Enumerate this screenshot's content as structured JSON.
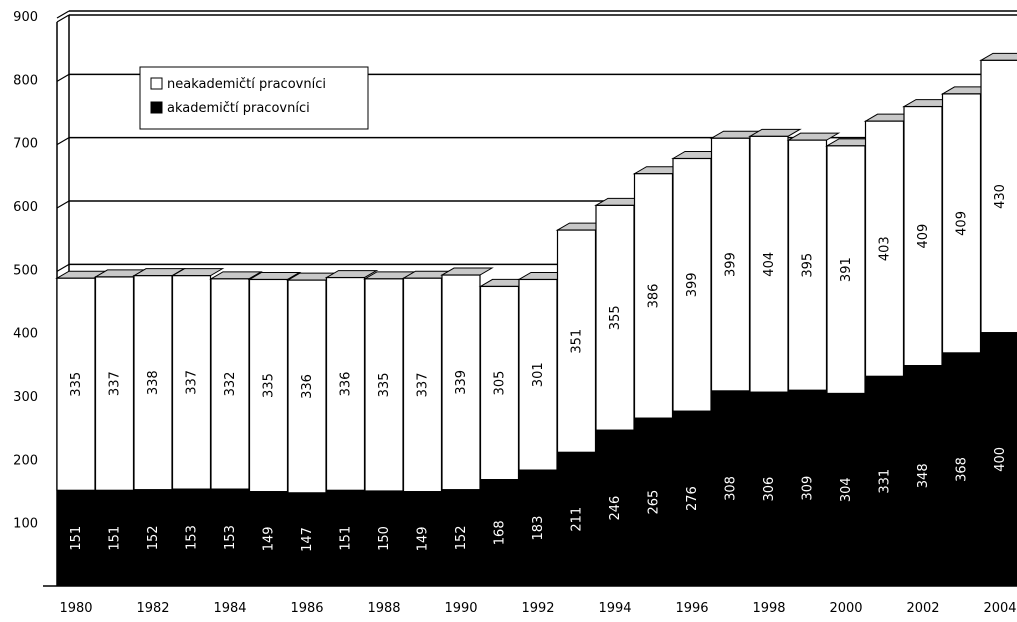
{
  "chart_data": {
    "type": "bar",
    "stacked": true,
    "x": [
      1980,
      1981,
      1982,
      1983,
      1984,
      1985,
      1986,
      1987,
      1988,
      1989,
      1990,
      1991,
      1992,
      1993,
      1994,
      1995,
      1996,
      1997,
      1998,
      1999,
      2000,
      2001,
      2002,
      2003,
      2004
    ],
    "x_tick_labels": [
      "1980",
      "1982",
      "1984",
      "1986",
      "1988",
      "1990",
      "1992",
      "1994",
      "1996",
      "1998",
      "2000",
      "2002",
      "2004"
    ],
    "y_tick_labels": [
      "100",
      "200",
      "300",
      "400",
      "500",
      "600",
      "700",
      "800",
      "900"
    ],
    "ylim": [
      0,
      900
    ],
    "series": [
      {
        "name": "akademičtí pracovníci",
        "color": "#000000",
        "values": [
          151,
          151,
          152,
          153,
          153,
          149,
          147,
          151,
          150,
          149,
          152,
          168,
          183,
          211,
          246,
          265,
          276,
          308,
          306,
          309,
          304,
          331,
          348,
          368,
          400
        ]
      },
      {
        "name": "neakademičtí pracovníci",
        "color": "#ffffff",
        "values": [
          335,
          337,
          338,
          337,
          332,
          335,
          336,
          336,
          335,
          337,
          339,
          305,
          301,
          351,
          355,
          386,
          399,
          399,
          404,
          395,
          391,
          403,
          409,
          409,
          430
        ]
      }
    ],
    "legend": {
      "position": "top-left",
      "entries": [
        "neakademičtí pracovníci",
        "akademičtí pracovníci"
      ]
    },
    "grid": true,
    "style": "3d"
  }
}
